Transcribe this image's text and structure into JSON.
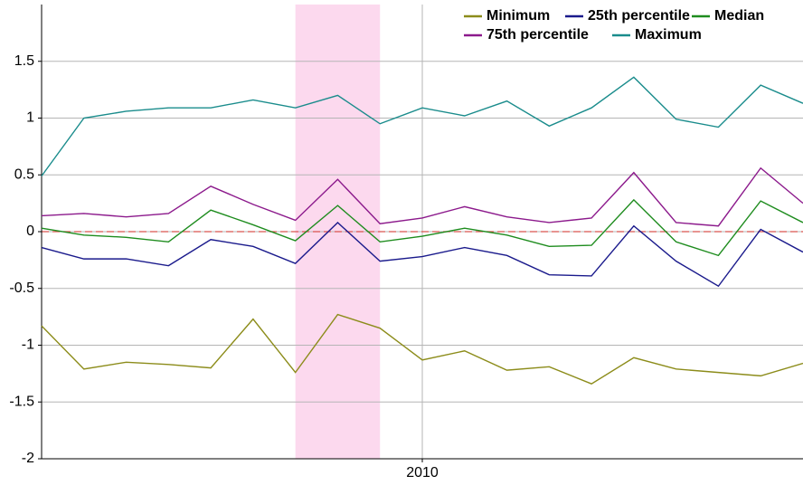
{
  "chart_data": {
    "type": "line",
    "categories": [
      null,
      null,
      null,
      null,
      null,
      null,
      null,
      null,
      null,
      "2010",
      null,
      null,
      null,
      null,
      null,
      null,
      null,
      null,
      null
    ],
    "series": [
      {
        "name": "Minimum",
        "color": "#8c8c1a",
        "values": [
          -0.83,
          -1.21,
          -1.15,
          -1.17,
          -1.2,
          -0.77,
          -1.24,
          -0.73,
          -0.85,
          -1.13,
          -1.05,
          -1.22,
          -1.19,
          -1.34,
          -1.11,
          -1.21,
          -1.24,
          -1.27,
          -1.16
        ]
      },
      {
        "name": "25th percentile",
        "color": "#1a1a8c",
        "values": [
          -0.14,
          -0.24,
          -0.24,
          -0.3,
          -0.07,
          -0.13,
          -0.28,
          0.08,
          -0.26,
          -0.22,
          -0.14,
          -0.21,
          -0.38,
          -0.39,
          0.05,
          -0.26,
          -0.48,
          0.02,
          -0.18
        ]
      },
      {
        "name": "Median",
        "color": "#1e8c1e",
        "values": [
          0.03,
          -0.03,
          -0.05,
          -0.09,
          0.19,
          0.06,
          -0.08,
          0.23,
          -0.09,
          -0.04,
          0.03,
          -0.03,
          -0.13,
          -0.12,
          0.28,
          -0.09,
          -0.21,
          0.27,
          0.08
        ]
      },
      {
        "name": "75th percentile",
        "color": "#8c1a8c",
        "values": [
          0.14,
          0.16,
          0.13,
          0.16,
          0.4,
          0.24,
          0.1,
          0.46,
          0.07,
          0.12,
          0.22,
          0.13,
          0.08,
          0.12,
          0.52,
          0.08,
          0.05,
          0.56,
          0.25
        ]
      },
      {
        "name": "Maximum",
        "color": "#1a8c8c",
        "values": [
          0.49,
          1.0,
          1.06,
          1.09,
          1.09,
          1.16,
          1.09,
          1.2,
          0.95,
          1.09,
          1.02,
          1.15,
          0.93,
          1.09,
          1.36,
          0.99,
          0.92,
          1.29,
          1.13
        ]
      }
    ],
    "ylim": [
      -2,
      2
    ],
    "yticks": [
      1.5,
      1,
      0.5,
      0,
      -0.5,
      -1,
      -1.5,
      -2
    ],
    "grid": true,
    "reference_line": {
      "value": 0,
      "color": "#d9534f"
    },
    "highlight": {
      "from_index": 6,
      "to_index": 8,
      "color": "#fcd9ee"
    },
    "legend": "top-right"
  }
}
